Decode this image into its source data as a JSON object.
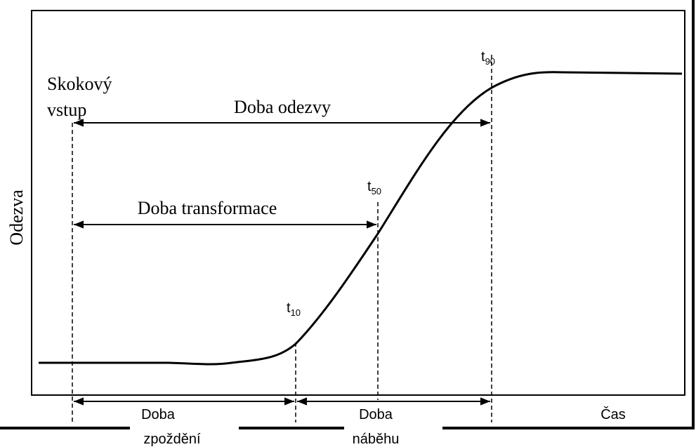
{
  "axis_labels": {
    "y": "Odezva",
    "x": "Čas"
  },
  "input_label": [
    "Skokový",
    "vstup"
  ],
  "intervals": {
    "response": "Doba odezvy",
    "transformation": "Doba transformace",
    "delay": [
      "Doba",
      "zpoždění"
    ],
    "rise": [
      "Doba",
      "náběhu"
    ]
  },
  "markers": [
    {
      "label": "t",
      "subscript": "10"
    },
    {
      "label": "t",
      "subscript": "50"
    },
    {
      "label": "t",
      "subscript": "90"
    }
  ]
}
